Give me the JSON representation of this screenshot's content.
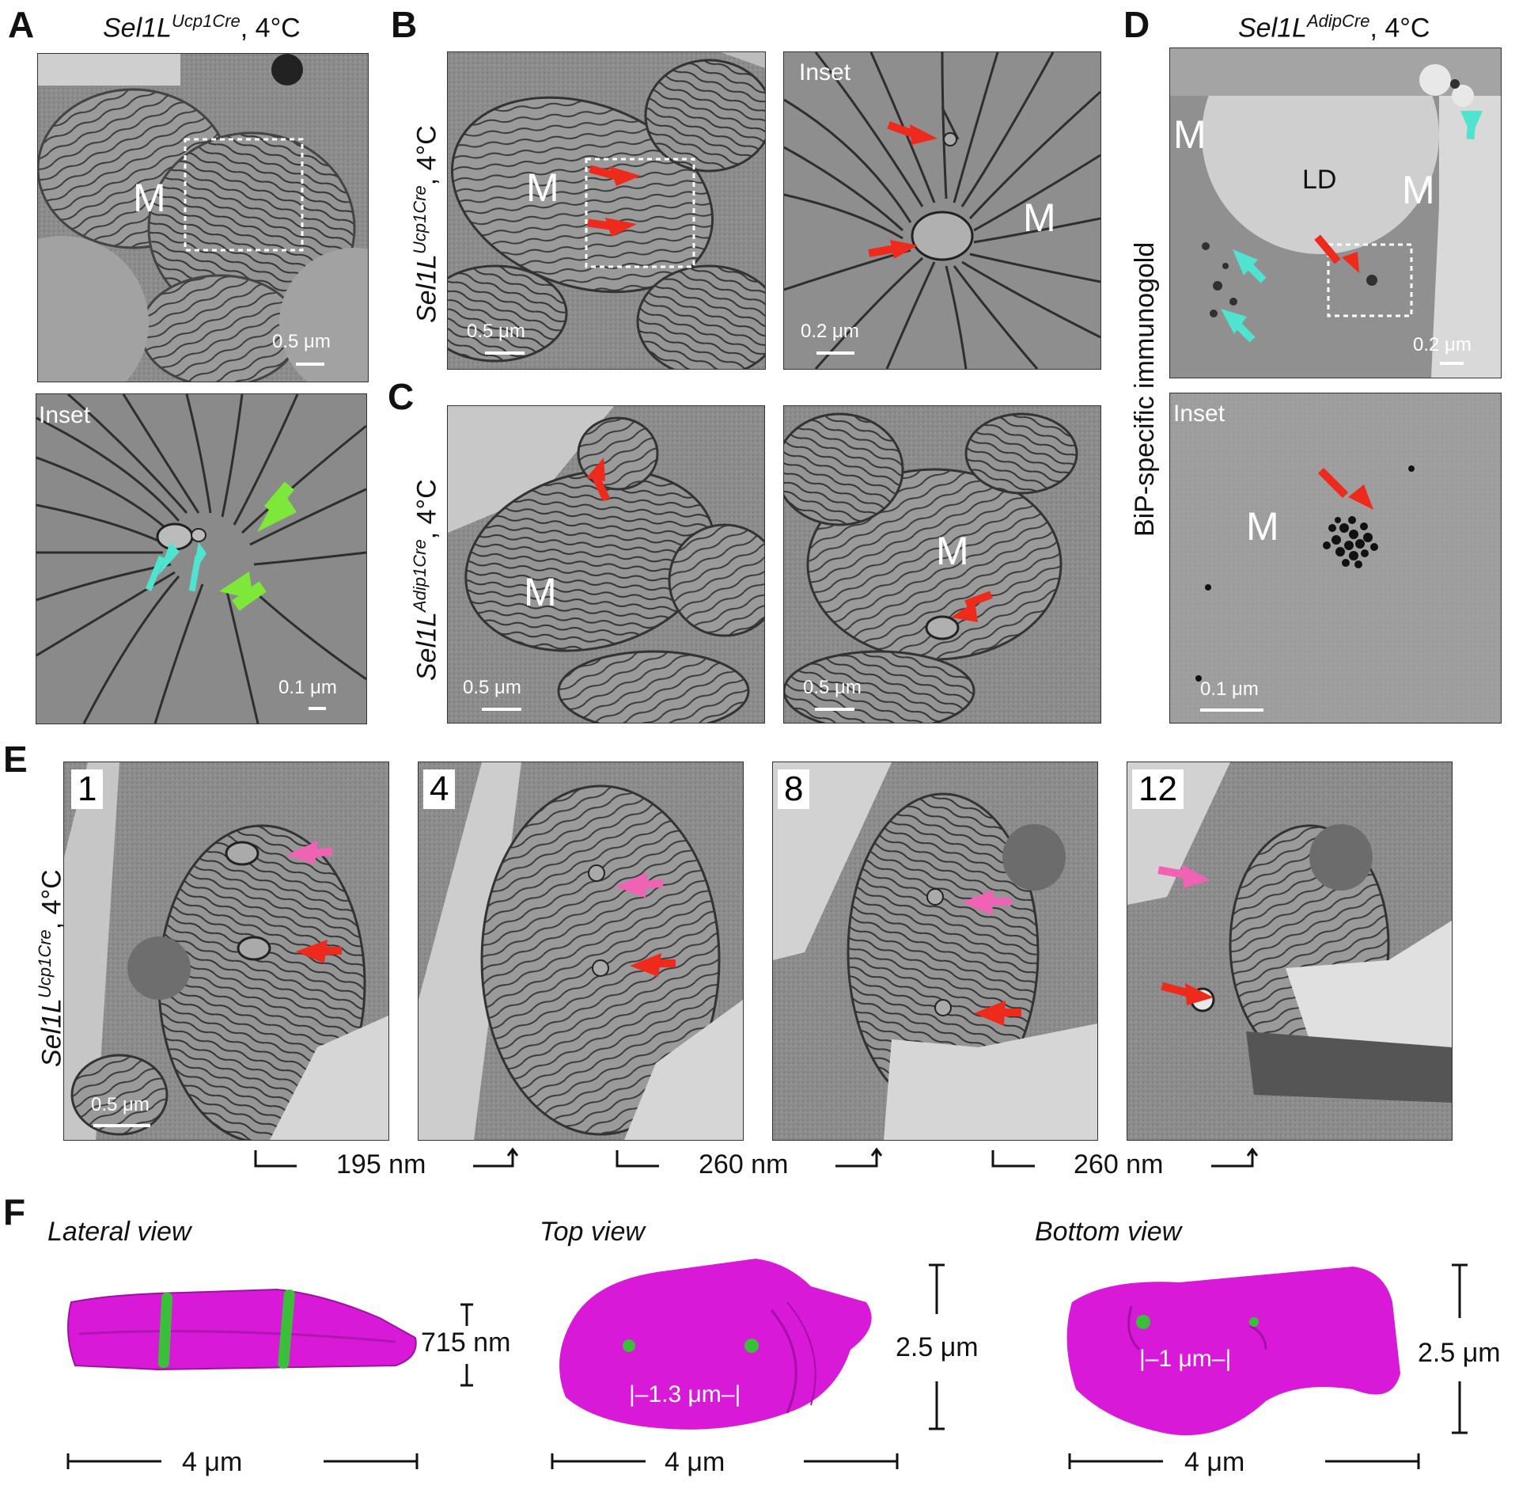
{
  "panels": {
    "A": {
      "letter": "A",
      "title_main": "Sel1L",
      "title_sup": "Ucp1Cre",
      "title_rest": ", 4°C",
      "top": {
        "m_label": "M",
        "scale_text": "0.5 μm"
      },
      "bottom": {
        "inset_label": "Inset",
        "scale_text": "0.1 μm"
      }
    },
    "B": {
      "letter": "B",
      "side_main": "Sel1L",
      "side_sup": "Ucp1Cre",
      "side_rest": ", 4°C",
      "left": {
        "m_label": "M",
        "scale_text": "0.5 μm"
      },
      "right": {
        "inset_label": "Inset",
        "m_label": "M",
        "scale_text": "0.2 μm"
      }
    },
    "C": {
      "letter": "C",
      "side_main": "Sel1L",
      "side_sup": "Adip1Cre",
      "side_rest": ", 4°C",
      "left": {
        "m_label": "M",
        "scale_text": "0.5 μm"
      },
      "right": {
        "m_label": "M",
        "scale_text": "0.5 μm"
      }
    },
    "D": {
      "letter": "D",
      "title_main": "Sel1L",
      "title_sup": "AdipCre",
      "title_rest": ", 4°C",
      "side_label": "BiP-specific immunogold",
      "top": {
        "m_label_1": "M",
        "m_label_2": "M",
        "ld_label": "LD",
        "scale_text": "0.2 μm"
      },
      "bottom": {
        "inset_label": "Inset",
        "m_label": "M",
        "scale_text": "0.1 μm"
      }
    },
    "E": {
      "letter": "E",
      "side_main": "Sel1L",
      "side_sup": "Ucp1Cre",
      "side_rest": ", 4°C",
      "sections": [
        "1",
        "4",
        "8",
        "12"
      ],
      "scale_text": "0.5 μm",
      "distances": [
        "195 nm",
        "260 nm",
        "260 nm"
      ]
    },
    "F": {
      "letter": "F",
      "views": [
        {
          "title": "Lateral view",
          "height_label": "715 nm",
          "width_label": "4 μm"
        },
        {
          "title": "Top view",
          "height_label": "2.5 μm",
          "width_label": "4 μm",
          "inner_label": "1.3 μm"
        },
        {
          "title": "Bottom view",
          "height_label": "2.5 μm",
          "width_label": "4 μm",
          "inner_label": "1 μm"
        }
      ]
    }
  },
  "colors": {
    "red_arrow": "#ee2a1c",
    "cyan_arrow": "#4fe3d0",
    "green_arrow": "#7ee83a",
    "pink_arrow": "#f062b4",
    "magenta_model": "#d81ad8",
    "green_model": "#3bbf3b"
  }
}
